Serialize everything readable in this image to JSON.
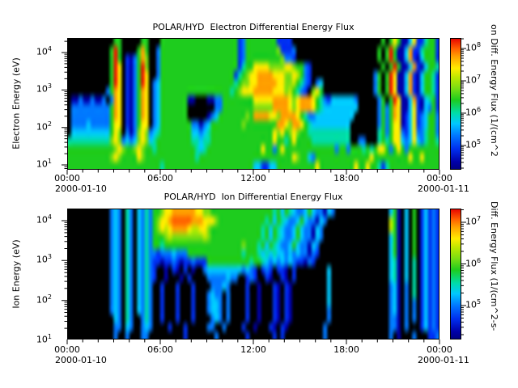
{
  "window": {
    "background": "#ffffff",
    "text_color": "#000000"
  },
  "chart_data": [
    {
      "type": "heatmap",
      "title": "POLAR/HYD  Electron Differential Energy Flux",
      "ylabel": "Electron Energy (eV)",
      "y_tick_exponents": [
        4,
        3,
        2,
        1
      ],
      "y_range_log10_eV": [
        0.9,
        4.4
      ],
      "x_tick_labels": [
        "00:00",
        "06:00",
        "12:00",
        "18:00",
        "00:00"
      ],
      "x_tick_hours": [
        0,
        6,
        12,
        18,
        24
      ],
      "x_minor_tick_every_hours": 1,
      "x_range_hours": [
        0,
        24
      ],
      "x_start_date": "2000-01-10",
      "x_end_date": "2000-01-11",
      "legend_position": "right-colorbar",
      "grid_lines": false,
      "colorbar": {
        "label": "on Diff. Energy Flux (1/(cm^2",
        "tick_exponents": [
          8,
          7,
          6,
          5
        ],
        "range_log10": [
          4.25,
          8.33
        ]
      },
      "grid": {
        "cols": 96,
        "rows": 16,
        "hours_per_col": 0.25,
        "row0_log10_eV": 4.25,
        "log10_eV_per_row": -0.215,
        "rows_rle": [
          "12. 2G 5. 2G 3. 20G 1B 1b 8G 4B 23. 1G 1. 1G 1y 1G 2N 1C 1y 2B 1T 2G 1B",
          "11. 1G 1R 1G 4. 1G 1O 1G 2. 1b 20G 1B 1b 8G 1g 3B 1b 21. 1G 1. 1G 1R 1G 2N 1C 1O 2B 1T 3G 1B",
          "11. 1G 1R 1G 1. 1B 1N 1b 1G 1O 1g 2. 1b 20G 1B 1b 9G 1g 2b 1B 21. 1G 1. 1G 1R 1G 2N 1C 1O 1B 1N 1C 3G 1B",
          "11. 1G 1R 1y 1. 1B 1N 1b 1G 1R 1g 2. 1b 20G 1B 1T 2G 4y 4g 2y 1g 2G 1b 1B 18. 1G 1. 1G 1R 1G 2N 1C 1O 1B 1N 1C 2G 1T 1B",
          "11. 1G 1R 1y 1. 1B 1N 1b 1G 1R 1y 2. 1b 19G 1B 1T 1G 1g 2y 4O 3y 2g 1y 1Y 1G 1b 1B 16. 1b 1G 1. 1G 1R 1y 2N 1C 1O 1B 1N 1C 2G 1T 1B",
          "11. 1G 1R 1y 1. 1B 1N 1b 1G 1R 1y 1. 1b 1C 19G 1T 1G 2g 2y 5O 2y 2g 1Y 1G 1T 1b 1B 1. 1b 1C 13. 1b 1G 1. 1G 1R 1y 2N 1C 1O 1B 1N 1C 2G 1T 1B",
          "10. 1b 1G 1O 1y 1. 1B 1N 1b 1G 1O 1y 1. 1b 1C 18G 1T 1G 1g 3y 5O 3y 1g 1Y 1G 1T 1b 1B 1. 1g 1y 1G 13. 1b 1G 1. 1G 1R 1y 2N 1C 1O 1B 1N 1C 2G 1T 1B",
          "1. 2N 1b 2N 1b 2N 1b 1. 1b 1O 1y 1. 1B 1N 1b 1G 1O 1y 1. 1b 1C 7G 2N 3. 2N 2b 8G 5y 4O 1y 1g 1y 3O 1y 1G 1T 1b 1B 6C 1b 5. 1b 1G 1. 1G 1R 1y 2N 1C 1O 1B 1N 1C 1T 1G 1B",
          "1. 10b 1G 1O 1y 1. 1B 1N 1b 1G 1O 1y 1. 1b 1C 7G 7. 2b 8G 5g 4O 1y 1g 1y 3O 1y 1G 1T 9C 5. 1b 1G 1b 1G 1O 1y 2N 1C 1y 1B 1N 1C 1b 1G 1B",
          "1. 10b 1G 1O 1y 1. 1B 1N 1b 1G 1O 1y 1. 1b 1C 7G 5. 1N 1b 1C 7G 1g 1G 4O 2y 1g 4O 1y 1G 1T 2b 10C 6. 1b 1G 1b 1G 1O 1y 1N 1B 1C 1y 1B 1b 1C 2G 1b",
          "1. 4b 1C 5b 1G 1y 1y 1. 1B 1N 1b 1G 1y 1y 1. 1b 1C 8G 2b 1N 1b 1C 8G 1g 8G 2O 1y 1g 2O 1y 1G 1T 10C 7. 1b 1G 1b 1G 1y 1y 1N 1B 1C 1y 1B 1b 1C 2G 1b",
          "1. 10C 1G 1y 1g 1. 1b 1N 1b 1g 1y 1g 1b 1C 1T 8G 2C 1b 1C 1T 16G 1y 1g 1y 1G 1g 1y 1g 2G 1T 10T 7. 1T 1G 1b 1G 1y 1y 1b 1B 1C 1y 1b 1b 1T 2G 1b",
          "1T 10T 1g 1y 1g 1b 1C 1b 1C 1g 1y 1g 1C 1T 1G 8G 2T 1C 2T 16G 1y 2G 1T 1G 1y 1G 3G 10T 2. 2b 3. 1T 1G 1T 1G 1y 1y 1C 1b 1C 1y 1C 1b 1T 2G 1T",
          "12G 1g 1y 1g 2G 1g 1y 1g 2G 1T 10G 1T 1C 1T 14G 1y 2G 1b 1G 1y 4G 9G 1b 2G 1b 3G 1T 1G 1T 1G 2y 1G 1b 1G 1y 1G 1b 8G",
          "11G 1g 1y 1g 4G 1y 1g 13G 1T 24G 1y 1g 2G 1C 1b 14G 1y 9G 1y 2G 1y 4G",
          "24G 1T 23G 2C 2B 2C 10G 1y 9G 1y 2G 1y 2G 1T 1B 1T 13G"
        ]
      }
    },
    {
      "type": "heatmap",
      "title": "POLAR/HYD  Ion Differential Energy Flux",
      "ylabel": "Ion Energy (eV)",
      "y_tick_exponents": [
        4,
        3,
        2,
        1
      ],
      "y_range_log10_eV": [
        0.9,
        4.4
      ],
      "x_tick_labels": [
        "00:00",
        "06:00",
        "12:00",
        "18:00",
        "00:00"
      ],
      "x_tick_hours": [
        0,
        6,
        12,
        18,
        24
      ],
      "x_minor_tick_every_hours": 1,
      "x_range_hours": [
        0,
        24
      ],
      "x_start_date": "2000-01-10",
      "x_end_date": "2000-01-11",
      "legend_position": "right-colorbar",
      "grid_lines": false,
      "colorbar": {
        "label": "Diff. Energy Flux (1/(cm^2-s-",
        "tick_exponents": [
          7,
          6,
          5
        ],
        "range_log10": [
          4.18,
          7.33
        ]
      },
      "grid": {
        "cols": 96,
        "rows": 16,
        "hours_per_col": 0.25,
        "row0_log10_eV": 4.25,
        "log10_eV_per_row": -0.215,
        "rows_rle": [
          "11. 1b 1C 1b 1. 1T 1b 1. 1C 1b 1T 1b 2G 1g 2y 6O 2y 2g 16G 1T 1G 1C 1G 1T 1C 2b 1C 1G 1C 2b 1N 1C 1b 14. 1C 1G 1N 1. 1C 1. 1G 1. 1B 1C 1B 1b 1B",
          "11. 1b 1C 1b 1. 1T 1b 1. 1C 1b 1T 1b 1G 1g 2y 1O 5o 3O 3y 1g 12G 1T 1G 1C 1G 1T 1C 2b 1C 1G 1C 2b 1N 1C 1b 16. 1Y 1G 1N 1. 1C 1. 1G 1. 1B 1C 1B 1b 1B",
          "11. 1b 1C 1b 1. 1T 1b 1. 1C 1b 1T 1b 1G 1g 1y 1Y 1y 4O 1y 2Y 2y 1g 13G 1T 1G 1C 1G 1T 1C 2b 1C 1G 1C 2b 1N 1C 1b 17. 1Y 1G 1N 1. 1C 1. 1G 1. 1B 1C 1B 1b 1B",
          "11. 1b 1C 1b 1. 1T 1b 1. 1C 1b 1T 1b 3G 1g 1Y 8g 1Y 1g 13G 1T 1G 1C 1G 1T 1C 2b 1C 1G 1C 2b 1N 1C 1b 17. 1C 1G 1N 1. 1C 1. 1G 1. 1B 1C 1B 1b 1B",
          "11. 1b 1C 1b 1. 1T 1b 1. 1C 1b 1T 1b 2G 1T 20G 1g 3G 1T 1G 1C 1G 1T 1C 2b 1C 1G 1C 2b 1N 1C 1b 18. 1C 1G 1N 1. 1C 1. 1G 1. 1B 1C 1B 1b 1B",
          "11. 1b 1C 1b 1. 1T 1b 1. 1C 1b 1T 1b 1b 1B 3b 1C 3b 14G 1T 3G 1T 1C 1T 1C 1T 2C 1b 1C 1b 1C 2b 1N 1b 1B 18. 1C 1G 1N 1. 1C 1. 1G 1. 1B 1C 1B 1b 1B",
          "11. 1b 1C 1b 1. 1T 1b 1. 1C 1b 1T 1b 2B 1N 2B 1b 1B 1N 2B 1b 3B 11G 1T 2G 1T 1C 1b 1C 1b 1C 1b 1C 1b 2B 1N 1b 1B 19. 1C 1T 1N 1. 1C 1. 1T 1. 1B 1C 1B 1b 1B",
          "11. 1b 1C 1b 1. 1T 1b 1. 1C 1b 1T 1b 1B 2. 1N 1. 1B 1N 1. 1B 1. 1N 2. 1b 9C 1b 1C 1b 1B 1. 1B 1b 1B 1. 2B 1N 1. 1B 8. 1C 15. 1C 1T 1N 1. 1C 1. 1T 1. 1B 1C 1B 1b 1B",
          "11. 1b 1C 1b 1. 1T 1b 1. 1C 1b 1T 1b 1B 2. 1N 3. 1N 1. 1B 4. 1b 4b 1C 2b 2. 1B 1b 1B 2. 1B 1N 2. 1B 1N 1. 1B 8. 1C 15. 1C 1T 1N 1. 1C 1. 1T 1. 1B 1C 1B 1b 1B",
          "11. 1b 1C 1b 1. 1T 1b 1. 1C 1b 1T 1b 2. 1B 3. 1B 3. 1B 4. 1b 2b 1C 1b 4. 1B 2. 1N 3. 1B 1N 1. 1B 1N 9. 1C 15. 1b 1C 1N 1. 1b 1. 1T 1. 1B 1C 1B 1b 1B",
          "11. 1b 1C 1b 1. 1T 1b 1. 1C 1b 1T 1b 2. 1B 3. 1B 3. 1B 3. 1b 1C 2b 1. 1b 4. 1B 2. 1N 3. 1B 1N 1. 1B 1N 9. 1C 15. 1b 1C 1N 1. 1b 1. 1T 1. 1B 1C 1B 1b 1B",
          "11. 1b 1C 1b 1. 1T 1b 1. 1C 1b 1T 1b 2. 1B 3. 1B 3. 1B 3. 1b 2C 1b 1. 1b 4. 1B 2. 1N 3. 1B 1N 1. 1B 1N 9. 1C 15. 1b 1C 1N 1. 1b 1. 1b 1. 1B 1C 1B 1b 1B",
          "11. 1b 1C 1b 1. 1T 1b 1. 1C 1b 1T 1b 2. 1B 3. 1B 3. 1B 3. 1b 2C 1b 1. 1b 4. 1B 2. 1N 3. 1B 1N 1. 1B 1N 9. 1b 15. 1b 1C 1N 1. 1b 1. 1b 1. 1B 1C 1B 1b 1B",
          "11. 1. 1C 1b 1. 1T 1b 2. 1b 1T 1b 2. 1B 3. 1B 3. 1B 4. 1b 1C 1b 1. 1b 4. 1B 2. 1N 3. 1B 1N 1. 1B 1N 9. 1b 15. 1b 1b 1N 1. 1b 1. 1b 1. 1B 1C 1B 1b 1B",
          "11. 1. 1b 1b 1. 1C 1b 2. 1b 1C 1b 4. 1B 3. 1B 5. 1b 1b 2. 1b 4. 1B 2. 1N 3. 1B 1N 1. 1B 1N 9. 1b 16. 1b 1b 1N 1. 1b 3. 1B 1C 1B 1b 1B",
          "12. 1b 2. 1b 3. 1b 1b 9. 1B 7. 1b 7. 1B 6. 1B 1. 1B 10. 1b 16. 1b 1. 1N 3. 1b 3. 1B 1B 1b 1B"
        ]
      }
    }
  ],
  "palette": {
    "colors": {
      ".": "#000000",
      "N": "#0000A8",
      "B": "#0030F0",
      "b": "#0078FF",
      "C": "#00C8FF",
      "T": "#00DCA8",
      "G": "#1ECC1E",
      "g": "#7CDE12",
      "Y": "#BCE800",
      "y": "#FFEC00",
      "O": "#FFA000",
      "o": "#FF5E00",
      "R": "#F01800"
    },
    "log10_flux_by_char": {
      "electron": {
        ".": null,
        "N": 4.5,
        "B": 4.9,
        "b": 5.3,
        "C": 5.7,
        "T": 6.0,
        "G": 6.4,
        "g": 6.8,
        "Y": 7.1,
        "y": 7.4,
        "O": 7.8,
        "o": 8.0,
        "R": 8.2
      },
      "ion": {
        ".": null,
        "N": 4.4,
        "B": 4.7,
        "b": 5.0,
        "C": 5.3,
        "T": 5.55,
        "G": 5.8,
        "g": 6.1,
        "Y": 6.35,
        "y": 6.6,
        "O": 6.9,
        "o": 7.1,
        "R": 7.3
      }
    }
  },
  "colorbar_gradient_stops": [
    "#E60000 0%",
    "#FF5E00 8%",
    "#FFA000 14%",
    "#FFEC00 23%",
    "#BCE800 30%",
    "#7CDE12 38%",
    "#1ECC1E 47%",
    "#00DCA8 57%",
    "#00C8FF 65%",
    "#0078FF 74%",
    "#0030F0 84%",
    "#0000A8 94%",
    "#000080 100%"
  ]
}
